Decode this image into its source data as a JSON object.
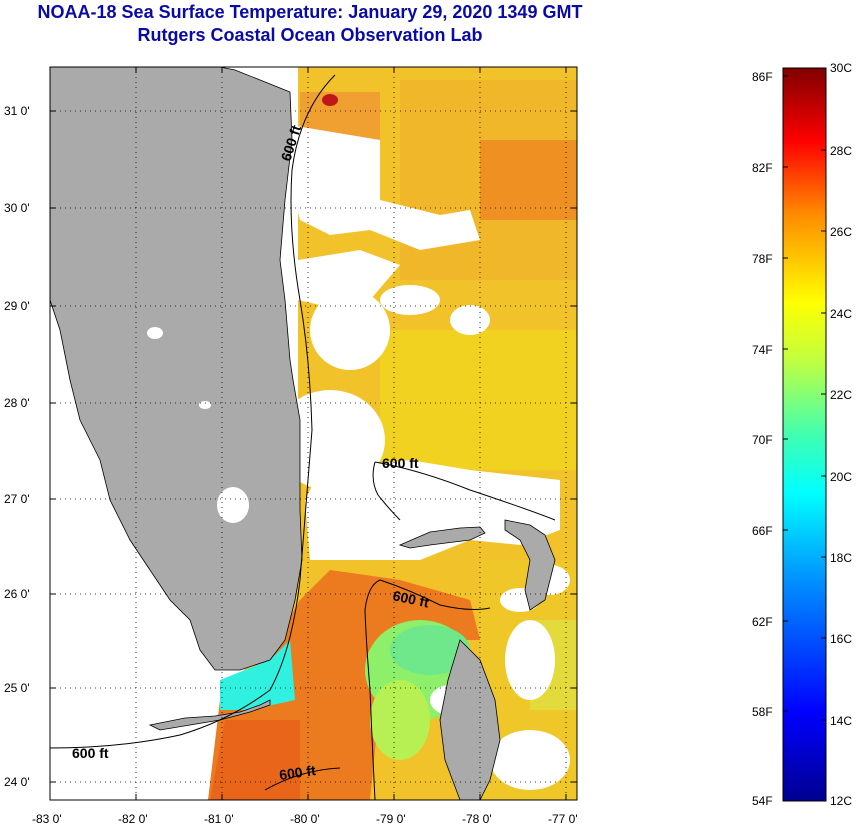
{
  "header": {
    "title": "NOAA-18 Sea Surface Temperature:  January 29, 2020 1349 GMT",
    "subtitle": "Rutgers Coastal Ocean Observation Lab"
  },
  "map": {
    "lon_range": [
      -83,
      -76.9
    ],
    "lat_range": [
      23.8,
      31.45
    ],
    "x_ticks": [
      "-83 0'",
      "-82 0'",
      "-81 0'",
      "-80 0'",
      "-79 0'",
      "-78 0'",
      "-77 0'"
    ],
    "y_ticks": [
      "24 0'",
      "25 0'",
      "26 0'",
      "27 0'",
      "28 0'",
      "29 0'",
      "30 0'",
      "31 0'"
    ],
    "contour_label": "600 ft",
    "land_color": "#aaaaaa",
    "cloud_color": "#ffffff"
  },
  "colorbar": {
    "min_c": 12,
    "max_c": 30,
    "f_labels": [
      "86F",
      "82F",
      "78F",
      "74F",
      "70F",
      "66F",
      "62F",
      "58F",
      "54F"
    ],
    "c_labels": [
      "30C",
      "28C",
      "26C",
      "24C",
      "22C",
      "20C",
      "18C",
      "16C",
      "14C",
      "12C"
    ]
  }
}
